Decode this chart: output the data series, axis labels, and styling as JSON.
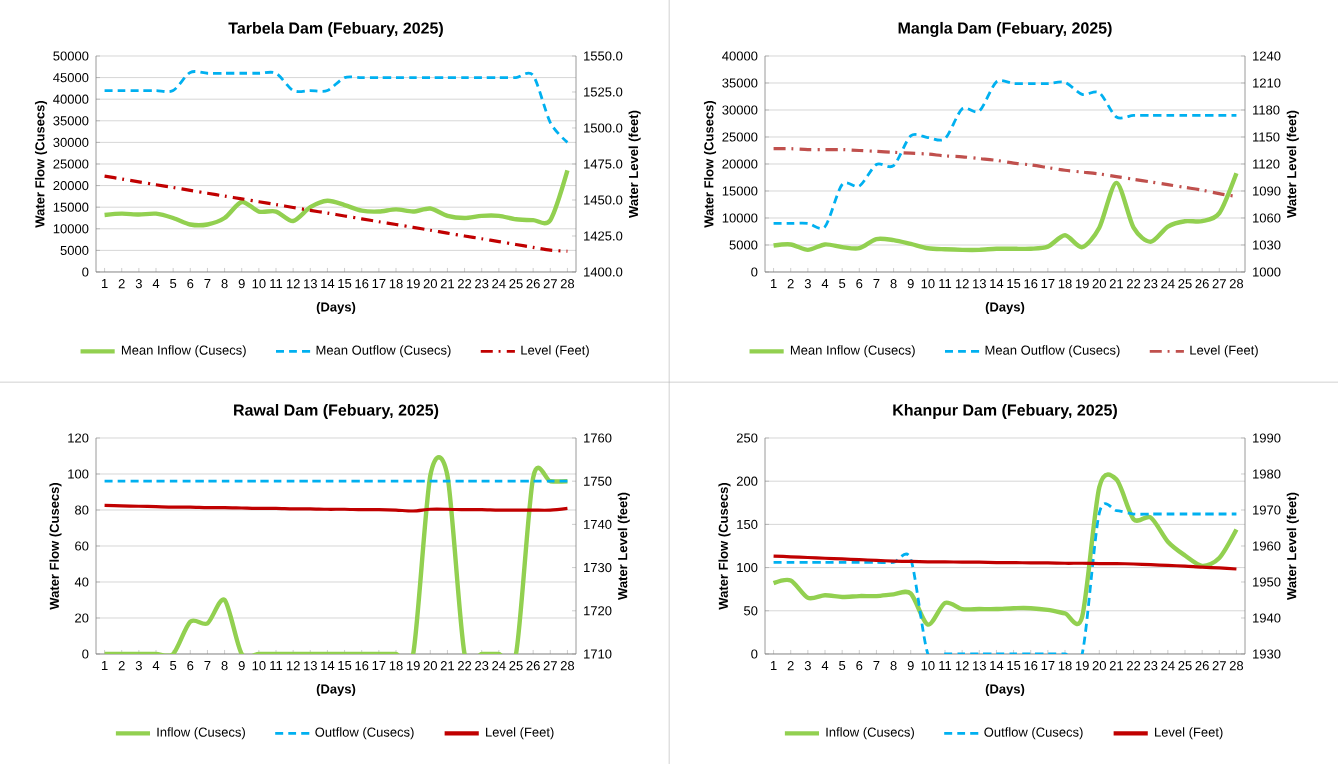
{
  "chart_data": [
    {
      "type": "line",
      "title": "Tarbela Dam (Febuary, 2025)",
      "xlabel": "(Days)",
      "ylabel": "Water Flow (Cusecs)",
      "y2label": "Water Level (feet)",
      "categories": [
        "1",
        "2",
        "3",
        "4",
        "5",
        "6",
        "7",
        "8",
        "9",
        "10",
        "11",
        "12",
        "13",
        "14",
        "15",
        "16",
        "17",
        "18",
        "19",
        "20",
        "21",
        "22",
        "23",
        "24",
        "25",
        "26",
        "27",
        "28"
      ],
      "ylim": [
        0,
        50000
      ],
      "yticks": [
        0,
        5000,
        10000,
        15000,
        20000,
        25000,
        30000,
        35000,
        40000,
        45000,
        50000
      ],
      "y2lim": [
        1400,
        1550
      ],
      "y2ticks": [
        {
          "value": 1400,
          "label": "1400.0"
        },
        {
          "value": 1425,
          "label": "1425.0"
        },
        {
          "value": 1450,
          "label": "1450.0"
        },
        {
          "value": 1475,
          "label": "1475.0"
        },
        {
          "value": 1500,
          "label": "1500.0"
        },
        {
          "value": 1525,
          "label": "1525.0"
        },
        {
          "value": 1550,
          "label": "1550.0"
        }
      ],
      "grid": "y",
      "legend": "bottom",
      "series": [
        {
          "name": "Mean Inflow (Cusecs)",
          "color": "#92d050",
          "line_style": "solid",
          "values": [
            13200,
            13500,
            13300,
            13500,
            12500,
            11000,
            11000,
            12500,
            16200,
            14000,
            14000,
            11800,
            15000,
            16500,
            15500,
            14200,
            14000,
            14500,
            14000,
            14700,
            13000,
            12500,
            13000,
            13000,
            12200,
            12000,
            12000,
            23500
          ]
        },
        {
          "name": "Mean Outflow (Cusecs)",
          "color": "#00b0f0",
          "line_style": "dashed",
          "values": [
            42000,
            42000,
            42000,
            42000,
            42000,
            46200,
            46000,
            46000,
            46000,
            46000,
            46000,
            42000,
            42000,
            42000,
            45000,
            45000,
            45000,
            45000,
            45000,
            45000,
            45000,
            45000,
            45000,
            45000,
            45000,
            45500,
            34600,
            30000
          ]
        },
        {
          "name": "Level (Feet)",
          "color": "#c00000",
          "line_style": "dashdot",
          "axis": "y2",
          "values": [
            1466.6,
            1464.6,
            1462.6,
            1460.6,
            1458.7,
            1456.7,
            1454.7,
            1452.7,
            1450.8,
            1448.8,
            1446.8,
            1444.8,
            1442.8,
            1440.9,
            1438.9,
            1436.9,
            1434.9,
            1433,
            1431,
            1429,
            1427,
            1425,
            1423.1,
            1421.1,
            1419.1,
            1417.1,
            1415.2,
            1414.4
          ]
        }
      ]
    },
    {
      "type": "line",
      "title": "Mangla Dam (Febuary, 2025)",
      "xlabel": "(Days)",
      "ylabel": "Water Flow (Cusecs)",
      "y2label": "Water Level (feet)",
      "categories": [
        "1",
        "2",
        "3",
        "4",
        "5",
        "6",
        "7",
        "8",
        "9",
        "10",
        "11",
        "12",
        "13",
        "14",
        "15",
        "16",
        "17",
        "18",
        "19",
        "20",
        "21",
        "22",
        "23",
        "24",
        "25",
        "26",
        "27",
        "28"
      ],
      "ylim": [
        0,
        40000
      ],
      "yticks": [
        0,
        5000,
        10000,
        15000,
        20000,
        25000,
        30000,
        35000,
        40000
      ],
      "y2lim": [
        1000,
        1240
      ],
      "y2ticks": [
        1000,
        1030,
        1060,
        1090,
        1120,
        1150,
        1180,
        1210,
        1240
      ],
      "grid": "y",
      "legend": "bottom",
      "series": [
        {
          "name": "Mean Inflow (Cusecs)",
          "color": "#92d050",
          "line_style": "solid",
          "values": [
            4900,
            5100,
            4100,
            5100,
            4600,
            4400,
            6100,
            5900,
            5200,
            4400,
            4200,
            4100,
            4100,
            4300,
            4300,
            4300,
            4700,
            6800,
            4600,
            8200,
            16500,
            8200,
            5600,
            8400,
            9400,
            9400,
            10900,
            18300
          ]
        },
        {
          "name": "Mean Outflow (Cusecs)",
          "color": "#00b0f0",
          "line_style": "dashed",
          "values": [
            9000,
            9000,
            9000,
            8400,
            16200,
            15900,
            19900,
            19700,
            25200,
            24900,
            24700,
            30200,
            29800,
            35200,
            34900,
            34900,
            34900,
            35100,
            32900,
            33200,
            28700,
            29000,
            29000,
            29000,
            29000,
            29000,
            29000,
            29000
          ]
        },
        {
          "name": "Level (Feet)",
          "color": "#c0504d",
          "line_style": "dashdot",
          "axis": "y2",
          "values": [
            1137,
            1137,
            1136,
            1136,
            1136,
            1135,
            1134,
            1133,
            1132,
            1131,
            1129,
            1128,
            1126,
            1124,
            1121,
            1119,
            1116,
            1113,
            1111,
            1109,
            1106,
            1103,
            1100,
            1097,
            1094,
            1091,
            1087,
            1084
          ]
        }
      ]
    },
    {
      "type": "line",
      "title": "Rawal Dam (Febuary, 2025)",
      "xlabel": "(Days)",
      "ylabel": "Water Flow (Cusecs)",
      "y2label": "Water Level (feet)",
      "categories": [
        "1",
        "2",
        "3",
        "4",
        "5",
        "6",
        "7",
        "8",
        "9",
        "10",
        "11",
        "12",
        "13",
        "14",
        "15",
        "16",
        "17",
        "18",
        "19",
        "20",
        "21",
        "22",
        "23",
        "24",
        "25",
        "26",
        "27",
        "28"
      ],
      "ylim": [
        0,
        120
      ],
      "yticks": [
        0,
        20,
        40,
        60,
        80,
        100,
        120
      ],
      "y2lim": [
        1710,
        1760
      ],
      "y2ticks": [
        1710,
        1720,
        1730,
        1740,
        1750,
        1760
      ],
      "grid": "y",
      "legend": "bottom",
      "series": [
        {
          "name": "Inflow (Cusecs)",
          "color": "#92d050",
          "line_style": "solid",
          "values": [
            0,
            0,
            0,
            0,
            0,
            18,
            17,
            30,
            0,
            0,
            0,
            0,
            0,
            0,
            0,
            0,
            0,
            0,
            0,
            99,
            99,
            0,
            0,
            0,
            0,
            98,
            96,
            96
          ]
        },
        {
          "name": "Outflow (Cusecs)",
          "color": "#00b0f0",
          "line_style": "dashed",
          "values": [
            96,
            96,
            96,
            96,
            96,
            96,
            96,
            96,
            96,
            96,
            96,
            96,
            96,
            96,
            96,
            96,
            96,
            96,
            96,
            96,
            96,
            96,
            96,
            96,
            96,
            96,
            96,
            96
          ]
        },
        {
          "name": "Level (Feet)",
          "color": "#c00000",
          "line_style": "solid",
          "axis": "y2",
          "values": [
            1744.4,
            1744.3,
            1744.2,
            1744.1,
            1744,
            1744,
            1743.9,
            1743.9,
            1743.8,
            1743.7,
            1743.7,
            1743.6,
            1743.6,
            1743.5,
            1743.5,
            1743.4,
            1743.4,
            1743.3,
            1743.1,
            1743.5,
            1743.5,
            1743.4,
            1743.4,
            1743.3,
            1743.3,
            1743.3,
            1743.3,
            1743.7
          ]
        }
      ]
    },
    {
      "type": "line",
      "title": "Khanpur Dam (Febuary, 2025)",
      "xlabel": "(Days)",
      "ylabel": "Water Flow (Cusecs)",
      "y2label": "Water Level (feet)",
      "categories": [
        "1",
        "2",
        "3",
        "4",
        "5",
        "6",
        "7",
        "8",
        "9",
        "10",
        "11",
        "12",
        "13",
        "14",
        "15",
        "16",
        "17",
        "18",
        "19",
        "20",
        "21",
        "22",
        "23",
        "24",
        "25",
        "26",
        "27",
        "28"
      ],
      "ylim": [
        0,
        250
      ],
      "yticks": [
        0,
        50,
        100,
        150,
        200,
        250
      ],
      "y2lim": [
        1930,
        1990
      ],
      "y2ticks": [
        1930,
        1940,
        1950,
        1960,
        1970,
        1980,
        1990
      ],
      "grid": "y",
      "legend": "bottom",
      "series": [
        {
          "name": "Inflow (Cusecs)",
          "color": "#92d050",
          "line_style": "solid",
          "values": [
            82,
            85,
            65,
            68,
            66,
            67,
            67,
            69,
            70,
            34,
            59,
            52,
            52,
            52,
            53,
            53,
            51,
            47,
            43,
            193,
            202,
            156,
            158,
            130,
            114,
            102,
            111,
            144
          ]
        },
        {
          "name": "Outflow (Cusecs)",
          "color": "#00b0f0",
          "line_style": "dashed",
          "values": [
            106,
            106,
            106,
            106,
            106,
            106,
            106,
            106,
            110,
            0,
            0,
            0,
            0,
            0,
            0,
            0,
            0,
            0,
            0,
            163,
            166,
            162,
            162,
            162,
            162,
            162,
            162,
            162
          ]
        },
        {
          "name": "Level (Feet)",
          "color": "#c00000",
          "line_style": "solid",
          "axis": "y2",
          "values": [
            1957.2,
            1957,
            1956.8,
            1956.6,
            1956.4,
            1956.2,
            1956,
            1955.8,
            1955.7,
            1955.6,
            1955.6,
            1955.5,
            1955.5,
            1955.4,
            1955.4,
            1955.3,
            1955.3,
            1955.2,
            1955.2,
            1955.1,
            1955.1,
            1955,
            1954.8,
            1954.6,
            1954.4,
            1954.1,
            1953.9,
            1953.6
          ]
        }
      ]
    }
  ]
}
